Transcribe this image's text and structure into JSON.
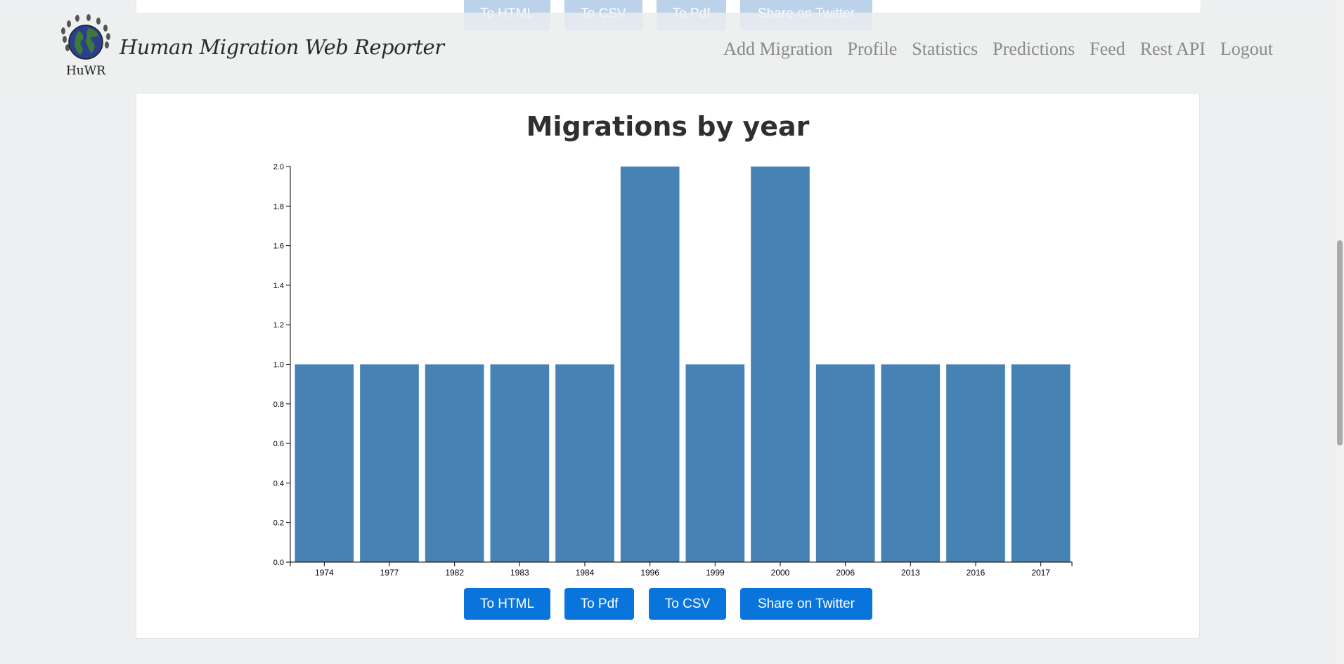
{
  "header": {
    "brand_title": "Human Migration Web Reporter",
    "logo_text": "HuWR",
    "nav": [
      {
        "label": "Add Migration"
      },
      {
        "label": "Profile"
      },
      {
        "label": "Statistics"
      },
      {
        "label": "Predictions"
      },
      {
        "label": "Feed"
      },
      {
        "label": "Rest API"
      },
      {
        "label": "Logout"
      }
    ]
  },
  "previous_card": {
    "buttons": [
      {
        "label": "To HTML"
      },
      {
        "label": "To CSV"
      },
      {
        "label": "To Pdf"
      },
      {
        "label": "Share on Twitter"
      }
    ]
  },
  "card": {
    "buttons": [
      {
        "label": "To HTML"
      },
      {
        "label": "To Pdf"
      },
      {
        "label": "To CSV"
      },
      {
        "label": "Share on Twitter"
      }
    ]
  },
  "colors": {
    "bar": "#4682b4",
    "button": "#0a74dd",
    "button_faded": "#bcd2ea"
  },
  "chart_data": {
    "type": "bar",
    "title": "Migrations by year",
    "categories": [
      "1974",
      "1977",
      "1982",
      "1983",
      "1984",
      "1996",
      "1999",
      "2000",
      "2006",
      "2013",
      "2016",
      "2017"
    ],
    "values": [
      1,
      1,
      1,
      1,
      1,
      2,
      1,
      2,
      1,
      1,
      1,
      1
    ],
    "yticks": [
      "0.0",
      "0.2",
      "0.4",
      "0.6",
      "0.8",
      "1.0",
      "1.2",
      "1.4",
      "1.6",
      "1.8",
      "2.0"
    ],
    "ylim": [
      0,
      2
    ],
    "xlabel": "",
    "ylabel": "",
    "grid": false,
    "legend": "none"
  }
}
